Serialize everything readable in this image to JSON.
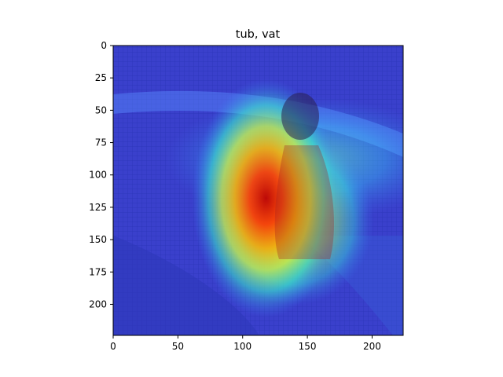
{
  "chart_data": {
    "type": "heatmap",
    "title": "tub, vat",
    "xlabel": "",
    "ylabel": "",
    "xlim": [
      0,
      224
    ],
    "ylim": [
      224,
      0
    ],
    "x_ticks": [
      0,
      50,
      100,
      150,
      200
    ],
    "y_ticks": [
      0,
      25,
      50,
      75,
      100,
      125,
      150,
      175,
      200
    ],
    "grid": false,
    "colormap": "jet",
    "background_color": "#3a3fd0",
    "hotspots": [
      {
        "x": 118,
        "y": 118,
        "sx": 26,
        "sy": 42,
        "intensity": 1.0
      },
      {
        "x": 140,
        "y": 135,
        "sx": 28,
        "sy": 30,
        "intensity": 0.75
      },
      {
        "x": 150,
        "y": 88,
        "sx": 50,
        "sy": 22,
        "intensity": 0.45
      }
    ]
  }
}
